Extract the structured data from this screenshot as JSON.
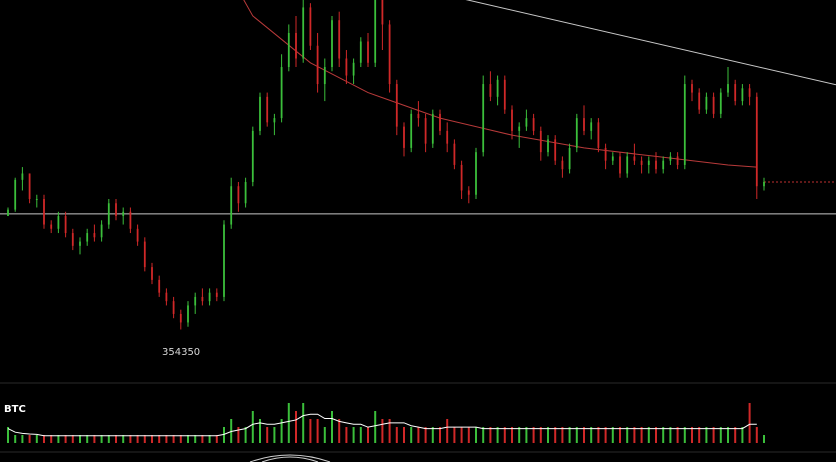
{
  "chart_data": {
    "type": "candlestick",
    "price_axis": {
      "low": 350000,
      "high": 420000
    },
    "volume_label": "BTC",
    "low_marker_label": "354350",
    "colors": {
      "up": "#3bbf3b",
      "down": "#d02828",
      "moving_average": "#b83a3a",
      "trendline": "#c8c8c8",
      "volume_line": "#ffffff",
      "background": "#000000"
    },
    "candles": [
      [
        381000,
        383000,
        381000,
        382500
      ],
      [
        382500,
        390000,
        382000,
        389500
      ],
      [
        389500,
        392500,
        387000,
        391000
      ],
      [
        391000,
        391000,
        384000,
        385000
      ],
      [
        385000,
        386000,
        383000,
        385000
      ],
      [
        385000,
        386000,
        378000,
        379000
      ],
      [
        379000,
        380000,
        377000,
        378000
      ],
      [
        378000,
        382000,
        377000,
        381000
      ],
      [
        381000,
        382000,
        376000,
        377000
      ],
      [
        377000,
        378000,
        373000,
        374000
      ],
      [
        374000,
        376000,
        372000,
        375000
      ],
      [
        375000,
        378000,
        374000,
        377000
      ],
      [
        377000,
        379000,
        375000,
        376000
      ],
      [
        376000,
        380000,
        375000,
        379000
      ],
      [
        379000,
        385000,
        378000,
        384000
      ],
      [
        384000,
        385000,
        380000,
        381000
      ],
      [
        381000,
        383000,
        379000,
        382000
      ],
      [
        382000,
        383000,
        377000,
        378000
      ],
      [
        378000,
        379000,
        374000,
        375000
      ],
      [
        375000,
        376000,
        368000,
        369000
      ],
      [
        369000,
        370000,
        365000,
        366000
      ],
      [
        366000,
        367000,
        362000,
        363000
      ],
      [
        363000,
        364000,
        360000,
        361000
      ],
      [
        361000,
        362000,
        357000,
        358000
      ],
      [
        358000,
        359000,
        354350,
        356000
      ],
      [
        356000,
        361000,
        355000,
        360000
      ],
      [
        360000,
        363000,
        358000,
        362000
      ],
      [
        362000,
        364000,
        360000,
        361000
      ],
      [
        361000,
        364000,
        360000,
        363000
      ],
      [
        363000,
        364000,
        361000,
        362000
      ],
      [
        362000,
        380000,
        361000,
        379000
      ],
      [
        379000,
        390000,
        378000,
        388000
      ],
      [
        388000,
        389000,
        382000,
        384000
      ],
      [
        384000,
        390000,
        383000,
        389000
      ],
      [
        389000,
        402000,
        388000,
        401000
      ],
      [
        401000,
        410000,
        400000,
        409000
      ],
      [
        409000,
        410000,
        402000,
        403000
      ],
      [
        403000,
        405000,
        400000,
        404000
      ],
      [
        404000,
        419000,
        403000,
        416000
      ],
      [
        416000,
        426000,
        415000,
        424000
      ],
      [
        424000,
        428000,
        416000,
        418000
      ],
      [
        418000,
        432000,
        417000,
        430000
      ],
      [
        430000,
        431000,
        420000,
        421000
      ],
      [
        421000,
        424000,
        410000,
        412000
      ],
      [
        412000,
        418000,
        408000,
        416000
      ],
      [
        416000,
        428000,
        415000,
        427000
      ],
      [
        427000,
        429000,
        416000,
        418000
      ],
      [
        418000,
        420000,
        412000,
        414000
      ],
      [
        414000,
        418000,
        412000,
        417000
      ],
      [
        417000,
        423000,
        416000,
        422000
      ],
      [
        422000,
        424000,
        416000,
        417000
      ],
      [
        417000,
        434000,
        416000,
        432000
      ],
      [
        432000,
        432000,
        420000,
        426000
      ],
      [
        426000,
        427000,
        410000,
        412000
      ],
      [
        412000,
        413000,
        400000,
        402000
      ],
      [
        402000,
        403000,
        395000,
        397000
      ],
      [
        397000,
        406000,
        396000,
        405000
      ],
      [
        405000,
        408000,
        402000,
        404000
      ],
      [
        404000,
        405000,
        396000,
        398000
      ],
      [
        398000,
        406000,
        397000,
        405000
      ],
      [
        405000,
        406000,
        400000,
        401000
      ],
      [
        401000,
        403000,
        396000,
        398000
      ],
      [
        398000,
        399000,
        392000,
        393000
      ],
      [
        393000,
        394000,
        385000,
        387000
      ],
      [
        387000,
        388000,
        384000,
        386000
      ],
      [
        386000,
        397000,
        385000,
        396000
      ],
      [
        396000,
        414000,
        395000,
        412000
      ],
      [
        412000,
        415000,
        408000,
        409000
      ],
      [
        409000,
        414000,
        407000,
        413000
      ],
      [
        413000,
        414000,
        405000,
        406000
      ],
      [
        406000,
        407000,
        399000,
        401000
      ],
      [
        401000,
        403000,
        397000,
        402000
      ],
      [
        402000,
        406000,
        401000,
        404000
      ],
      [
        404000,
        405000,
        400000,
        401000
      ],
      [
        401000,
        402000,
        394000,
        396000
      ],
      [
        396000,
        400000,
        395000,
        399000
      ],
      [
        399000,
        400000,
        393000,
        394000
      ],
      [
        394000,
        395000,
        390000,
        392000
      ],
      [
        392000,
        398000,
        391000,
        397000
      ],
      [
        397000,
        405000,
        396000,
        404000
      ],
      [
        404000,
        407000,
        400000,
        401000
      ],
      [
        401000,
        404000,
        399000,
        403000
      ],
      [
        403000,
        404000,
        396000,
        397000
      ],
      [
        397000,
        398000,
        392000,
        394000
      ],
      [
        394000,
        396000,
        393000,
        395000
      ],
      [
        395000,
        396000,
        390000,
        391000
      ],
      [
        391000,
        396000,
        390000,
        395000
      ],
      [
        395000,
        398000,
        393000,
        394000
      ],
      [
        394000,
        395000,
        391000,
        393000
      ],
      [
        393000,
        395000,
        391000,
        394000
      ],
      [
        394000,
        396000,
        391000,
        392000
      ],
      [
        392000,
        395000,
        391000,
        394000
      ],
      [
        394000,
        396000,
        393000,
        395000
      ],
      [
        395000,
        396000,
        392000,
        393000
      ],
      [
        393000,
        414000,
        392000,
        412000
      ],
      [
        412000,
        413000,
        408000,
        410000
      ],
      [
        410000,
        411000,
        405000,
        406000
      ],
      [
        406000,
        410000,
        405000,
        409000
      ],
      [
        409000,
        410000,
        404000,
        405000
      ],
      [
        405000,
        411000,
        404000,
        410000
      ],
      [
        410000,
        416000,
        409000,
        412000
      ],
      [
        412000,
        413000,
        407000,
        408000
      ],
      [
        408000,
        412000,
        407000,
        411000
      ],
      [
        411000,
        412000,
        407000,
        409000
      ],
      [
        409000,
        410000,
        385000,
        388000
      ],
      [
        388000,
        390000,
        387000,
        389000
      ]
    ],
    "volume": [
      2,
      1,
      1,
      1,
      1,
      1,
      1,
      1,
      1,
      1,
      1,
      1,
      1,
      1,
      1,
      1,
      1,
      1,
      1,
      1,
      1,
      1,
      1,
      1,
      1,
      1,
      1,
      1,
      1,
      1,
      2,
      3,
      2,
      2,
      4,
      3,
      2,
      2,
      3,
      5,
      4,
      5,
      3,
      3,
      2,
      4,
      3,
      2,
      2,
      2,
      2,
      4,
      3,
      3,
      2,
      2,
      2,
      2,
      2,
      2,
      2,
      3,
      2,
      2,
      2,
      2,
      2,
      2,
      2,
      2,
      2,
      2,
      2,
      2,
      2,
      2,
      2,
      2,
      2,
      2,
      2,
      2,
      2,
      2,
      2,
      2,
      2,
      2,
      2,
      2,
      2,
      2,
      2,
      2,
      2,
      2,
      2,
      2,
      2,
      2,
      2,
      2,
      2,
      5,
      2
    ],
    "moving_average": [
      [
        18,
        490000
      ],
      [
        26,
        452000
      ],
      [
        34,
        428000
      ],
      [
        42,
        417000
      ],
      [
        50,
        410000
      ],
      [
        60,
        404000
      ],
      [
        70,
        400000
      ],
      [
        80,
        397000
      ],
      [
        90,
        395000
      ],
      [
        100,
        393000
      ],
      [
        104,
        392500
      ]
    ],
    "trendline": {
      "from": [
        -1,
        457000
      ],
      "to": [
        112,
        413000
      ]
    },
    "horizontal_level": 381500,
    "dotted_level": 389000
  }
}
